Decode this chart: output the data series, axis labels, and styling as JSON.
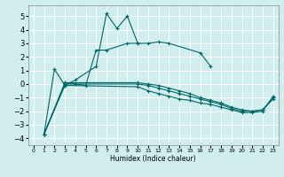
{
  "xlabel": "Humidex (Indice chaleur)",
  "background_color": "#d0eeee",
  "grid_color": "#ffffff",
  "line_color": "#006666",
  "x_ticks": [
    0,
    1,
    2,
    3,
    4,
    5,
    6,
    7,
    8,
    9,
    10,
    11,
    12,
    13,
    14,
    15,
    16,
    17,
    18,
    19,
    20,
    21,
    22,
    23
  ],
  "ylim": [
    -4.5,
    5.8
  ],
  "xlim": [
    -0.5,
    23.5
  ],
  "yticks": [
    -4,
    -3,
    -2,
    -1,
    0,
    1,
    2,
    3,
    4,
    5
  ],
  "series": [
    [
      null,
      -3.7,
      1.1,
      -0.1,
      0.3,
      null,
      1.3,
      5.2,
      4.1,
      5.0,
      3.0,
      3.0,
      3.1,
      3.0,
      null,
      null,
      2.3,
      1.3,
      null,
      null,
      null,
      null,
      null,
      null
    ],
    [
      null,
      null,
      null,
      0.1,
      0.0,
      -0.1,
      2.5,
      2.5,
      null,
      3.0,
      3.0,
      null,
      null,
      null,
      null,
      null,
      null,
      null,
      null,
      null,
      null,
      null,
      null,
      null
    ],
    [
      null,
      -3.7,
      null,
      -0.1,
      null,
      null,
      null,
      null,
      null,
      null,
      -0.2,
      -0.5,
      -0.7,
      -0.9,
      -1.1,
      -1.2,
      -1.4,
      -1.5,
      -1.7,
      -1.9,
      -2.1,
      -2.1,
      -2.0,
      -0.9
    ],
    [
      null,
      -3.7,
      null,
      0.0,
      null,
      null,
      null,
      null,
      null,
      null,
      0.0,
      -0.1,
      -0.3,
      -0.5,
      -0.7,
      -0.9,
      -1.1,
      -1.3,
      -1.5,
      -1.8,
      -2.0,
      -2.0,
      -1.9,
      -1.0
    ],
    [
      null,
      -3.7,
      null,
      0.1,
      null,
      null,
      null,
      null,
      null,
      null,
      0.1,
      0.0,
      -0.1,
      -0.3,
      -0.5,
      -0.7,
      -1.0,
      -1.2,
      -1.4,
      -1.7,
      -1.9,
      -2.0,
      -1.9,
      -1.1
    ]
  ]
}
